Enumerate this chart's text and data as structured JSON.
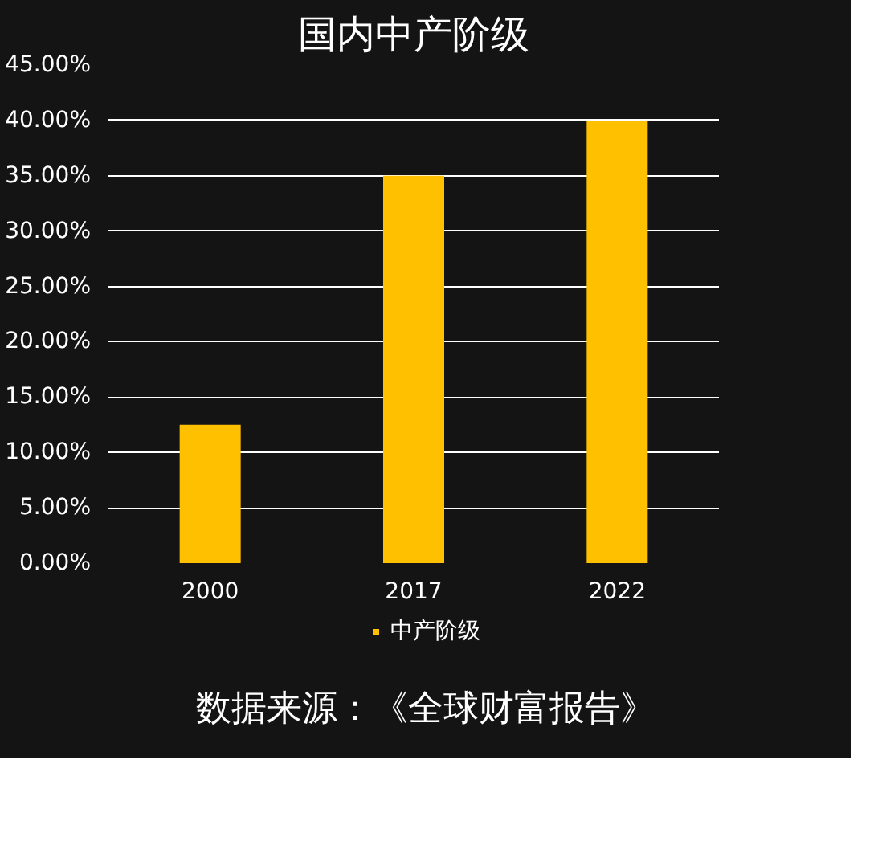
{
  "chart_data": {
    "type": "bar",
    "title": "国内中产阶级",
    "categories": [
      "2000",
      "2017",
      "2022"
    ],
    "series": [
      {
        "name": "中产阶级",
        "color": "#ffc000",
        "values": [
          12.5,
          35,
          40
        ]
      }
    ],
    "ylim": [
      0,
      45
    ],
    "yticks": [
      {
        "value": 0,
        "label": "0.00%"
      },
      {
        "value": 5,
        "label": "5.00%"
      },
      {
        "value": 10,
        "label": "10.00%"
      },
      {
        "value": 15,
        "label": "15.00%"
      },
      {
        "value": 20,
        "label": "20.00%"
      },
      {
        "value": 25,
        "label": "25.00%"
      },
      {
        "value": 30,
        "label": "30.00%"
      },
      {
        "value": 35,
        "label": "35.00%"
      },
      {
        "value": 40,
        "label": "40.00%"
      },
      {
        "value": 45,
        "label": "45.00%"
      }
    ],
    "grid": "y",
    "legend": "bottom",
    "annotations": [
      "数据来源：《全球财富报告》"
    ]
  }
}
